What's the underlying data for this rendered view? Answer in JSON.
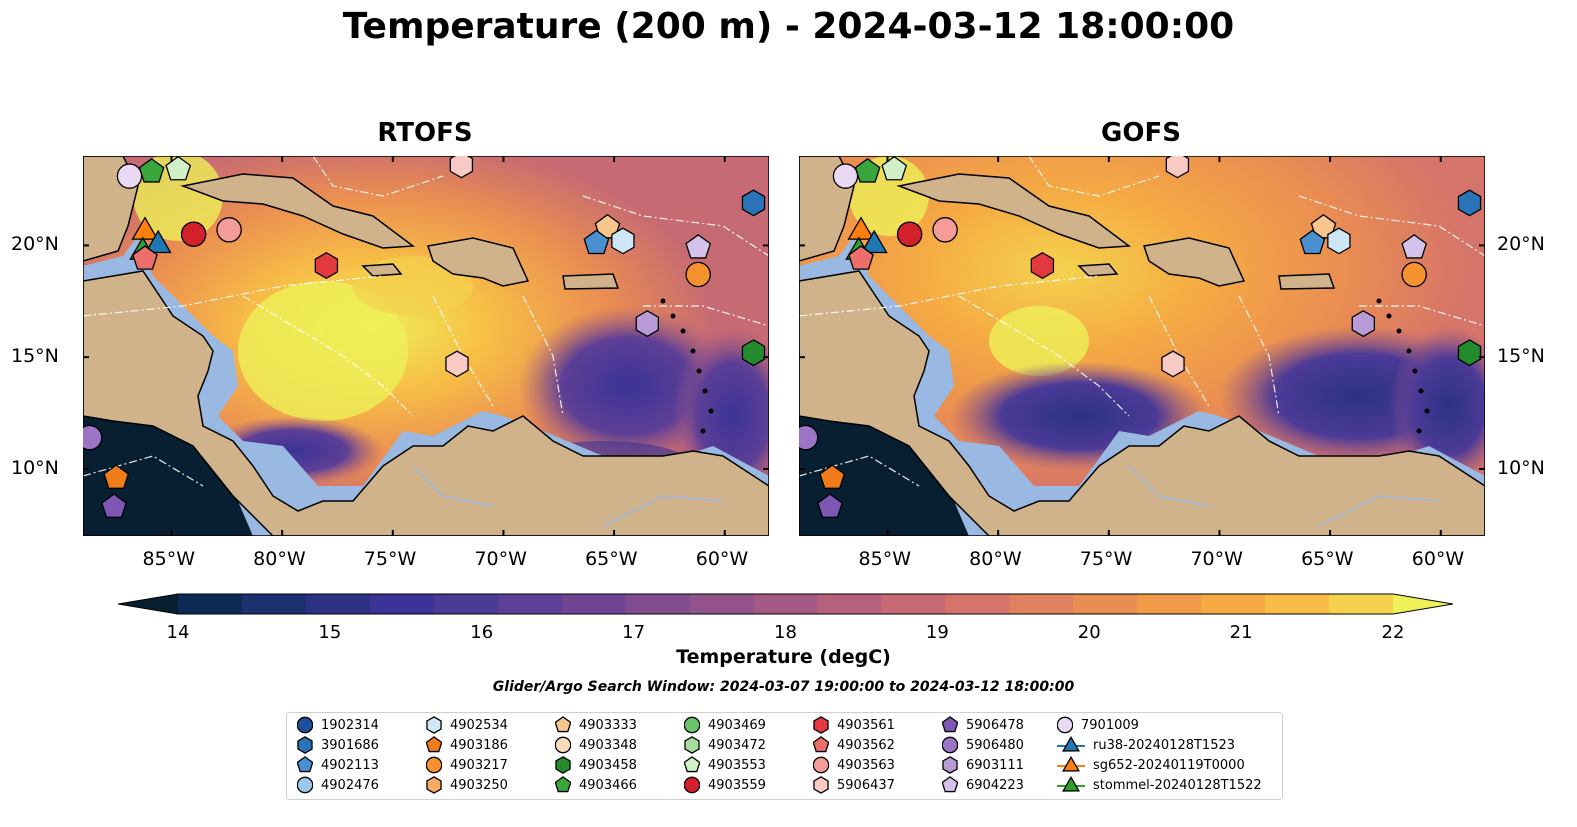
{
  "title": "Temperature (200 m) - 2024-03-12 18:00:00",
  "panels": [
    {
      "title": "RTOFS"
    },
    {
      "title": "GOFS"
    }
  ],
  "axes": {
    "lon_ticks": [
      "85°W",
      "80°W",
      "75°W",
      "70°W",
      "65°W",
      "60°W"
    ],
    "lat_ticks": [
      "20°N",
      "15°N",
      "10°N"
    ],
    "lon_range": [
      -89,
      -58
    ],
    "lat_range": [
      7,
      24
    ]
  },
  "colorbar": {
    "label": "Temperature (degC)",
    "ticks": [
      "14",
      "15",
      "16",
      "17",
      "18",
      "19",
      "20",
      "21",
      "22"
    ],
    "range": [
      14,
      22
    ],
    "extend": "both",
    "colors": [
      "#081f31",
      "#0d2a55",
      "#1c2f6e",
      "#2b3286",
      "#3b3396",
      "#4c3a97",
      "#5d3f96",
      "#6f4593",
      "#804c8f",
      "#91538a",
      "#a45a84",
      "#b5617c",
      "#c66a73",
      "#d5746a",
      "#e1805e",
      "#ea8d52",
      "#f19b48",
      "#f5aa43",
      "#f7bd46",
      "#f4d24e",
      "#eef058"
    ]
  },
  "search_window": "Glider/Argo Search Window: 2024-03-07 19:00:00 to 2024-03-12 18:00:00",
  "legend": {
    "items": [
      {
        "label": "1902314",
        "shape": "circle",
        "color": "#1f4e9a"
      },
      {
        "label": "3901686",
        "shape": "hexagon",
        "color": "#2b73b8"
      },
      {
        "label": "4902113",
        "shape": "pentagon",
        "color": "#4a90d0"
      },
      {
        "label": "4902476",
        "shape": "circle",
        "color": "#9cc9ea"
      },
      {
        "label": "4902534",
        "shape": "hexagon",
        "color": "#cfe6f7"
      },
      {
        "label": "4903186",
        "shape": "pentagon",
        "color": "#f07d19"
      },
      {
        "label": "4903217",
        "shape": "circle",
        "color": "#f5922f"
      },
      {
        "label": "4903250",
        "shape": "hexagon",
        "color": "#f8ac66"
      },
      {
        "label": "4903333",
        "shape": "pentagon",
        "color": "#f7c68d"
      },
      {
        "label": "4903348",
        "shape": "circle",
        "color": "#fbdcba"
      },
      {
        "label": "4903458",
        "shape": "hexagon",
        "color": "#238b2c"
      },
      {
        "label": "4903466",
        "shape": "pentagon",
        "color": "#3aa53c"
      },
      {
        "label": "4903469",
        "shape": "circle",
        "color": "#6cc36a"
      },
      {
        "label": "4903472",
        "shape": "hexagon",
        "color": "#a6dc9c"
      },
      {
        "label": "4903553",
        "shape": "pentagon",
        "color": "#d1f0c8"
      },
      {
        "label": "4903559",
        "shape": "circle",
        "color": "#d3202a"
      },
      {
        "label": "4903561",
        "shape": "hexagon",
        "color": "#e23a3e"
      },
      {
        "label": "4903562",
        "shape": "pentagon",
        "color": "#ec6f6c"
      },
      {
        "label": "4903563",
        "shape": "circle",
        "color": "#f49c98"
      },
      {
        "label": "5906437",
        "shape": "hexagon",
        "color": "#f9c9c4"
      },
      {
        "label": "5906478",
        "shape": "pentagon",
        "color": "#7e57b5"
      },
      {
        "label": "5906480",
        "shape": "circle",
        "color": "#9b74c6"
      },
      {
        "label": "6903111",
        "shape": "hexagon",
        "color": "#b79ad6"
      },
      {
        "label": "6904223",
        "shape": "pentagon",
        "color": "#d4c2ea"
      },
      {
        "label": "7901009",
        "shape": "circle",
        "color": "#ead9f5"
      },
      {
        "label": "ru38-20240128T1523",
        "shape": "triangle-line",
        "color": "#1f77b4"
      },
      {
        "label": "sg652-20240119T0000",
        "shape": "triangle-line",
        "color": "#ff7f0e"
      },
      {
        "label": "stommel-20240128T1522",
        "shape": "triangle-line",
        "color": "#2ca02c"
      }
    ]
  },
  "markers": [
    {
      "id": "7901009",
      "lon": -86.9,
      "lat": 23.1
    },
    {
      "id": "4903466",
      "lon": -85.9,
      "lat": 23.3
    },
    {
      "id": "4903553",
      "lon": -84.7,
      "lat": 23.4
    },
    {
      "id": "5906437",
      "lon": -71.9,
      "lat": 23.6
    },
    {
      "id": "sg652-20240119T0000",
      "lon": -86.2,
      "lat": 20.7
    },
    {
      "id": "4903559",
      "lon": -84.0,
      "lat": 20.5
    },
    {
      "id": "4903563",
      "lon": -82.4,
      "lat": 20.7
    },
    {
      "id": "ru38-20240128T1523",
      "lon": -85.6,
      "lat": 20.1
    },
    {
      "id": "stommel-20240128T1522",
      "lon": -86.3,
      "lat": 19.8
    },
    {
      "id": "4903562",
      "lon": -86.2,
      "lat": 19.4
    },
    {
      "id": "4903561",
      "lon": -78.0,
      "lat": 19.1
    },
    {
      "id": "4903333",
      "lon": -65.3,
      "lat": 20.8
    },
    {
      "id": "4902113",
      "lon": -65.8,
      "lat": 20.1
    },
    {
      "id": "4902534",
      "lon": -64.6,
      "lat": 20.2
    },
    {
      "id": "6904223",
      "lon": -61.2,
      "lat": 19.9
    },
    {
      "id": "4903217",
      "lon": -61.2,
      "lat": 18.7
    },
    {
      "id": "3901686",
      "lon": -58.7,
      "lat": 21.9
    },
    {
      "id": "6903111",
      "lon": -63.5,
      "lat": 16.5
    },
    {
      "id": "4903458",
      "lon": -58.7,
      "lat": 15.2
    },
    {
      "id": "5906437",
      "lon": -72.1,
      "lat": 14.7
    },
    {
      "id": "5906480",
      "lon": -88.7,
      "lat": 11.4
    },
    {
      "id": "4903186",
      "lon": -87.5,
      "lat": 9.6
    },
    {
      "id": "5906478",
      "lon": -87.6,
      "lat": 8.3
    }
  ]
}
